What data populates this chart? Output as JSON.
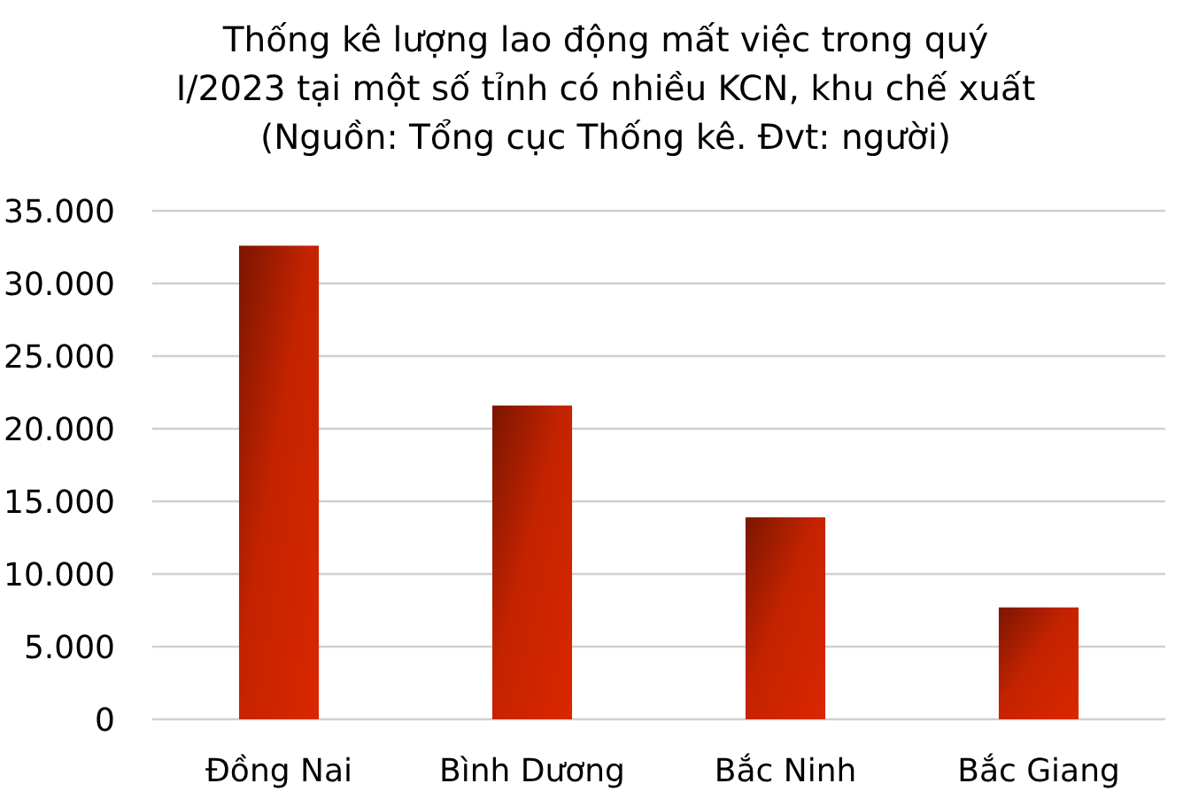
{
  "chart_data": {
    "type": "bar",
    "title": "Thống kê lượng lao động mất việc trong quý I/2023 tại một số tỉnh có nhiều KCN, khu chế xuất",
    "annotations": [
      "(Nguồn: Tổng cục Thống kê. Đvt: người)"
    ],
    "categories": [
      "Đồng Nai",
      "Bình Dương",
      "Bắc Ninh",
      "Bắc Giang"
    ],
    "values": [
      32600,
      21600,
      13900,
      7700
    ],
    "color": "#c42300",
    "ylim": [
      0,
      35000
    ],
    "yticks": [
      {
        "value": 0,
        "label": "0"
      },
      {
        "value": 5000,
        "label": "5.000"
      },
      {
        "value": 10000,
        "label": "10.000"
      },
      {
        "value": 15000,
        "label": "15.000"
      },
      {
        "value": 20000,
        "label": "20.000"
      },
      {
        "value": 25000,
        "label": "25.000"
      },
      {
        "value": 30000,
        "label": "30.000"
      },
      {
        "value": 35000,
        "label": "35.000"
      }
    ],
    "grid": "y"
  }
}
